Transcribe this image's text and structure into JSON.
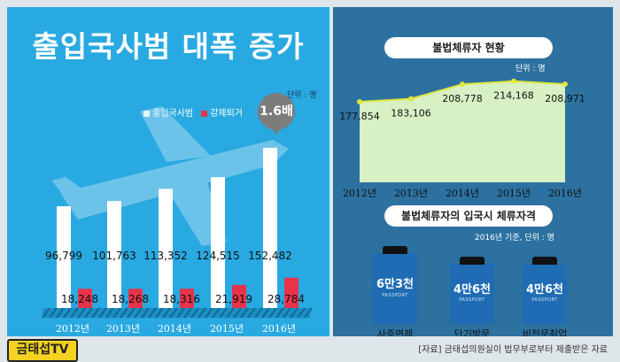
{
  "left_panel": {
    "title": "출입국사범 대폭 증가",
    "unit": "단위 : 명",
    "legend": [
      "출입국사범",
      "강제퇴거"
    ],
    "badge": "1.6배"
  },
  "right_panel": {
    "top_title": "불법체류자 현황",
    "top_unit": "단위 : 명",
    "bottom_title": "불법체류자의 입국시 체류자격",
    "bottom_unit": "2016년 기준, 단위 : 명",
    "passports": [
      {
        "value": "6만3천",
        "label": "사증면제",
        "sub": "PASSPORT"
      },
      {
        "value": "4만6천",
        "label": "단기방문",
        "sub": "PASSPORT"
      },
      {
        "value": "4만6천",
        "label": "비전문취업",
        "sub": "PASSPORT"
      }
    ]
  },
  "footer": {
    "logo": "금태섭TV",
    "source": "[자료] 금태섭의원실이 법무부로부터 제출받은 자료"
  },
  "colors": {
    "left_bg": "#29a9e1",
    "right_bg": "#2c71a0",
    "bar_white": "#ffffff",
    "bar_red": "#e8334a",
    "area_fill": "#d7f0c4",
    "line": "#e0e63a"
  },
  "chart_data": [
    {
      "type": "bar",
      "categories": [
        "2012년",
        "2013년",
        "2014년",
        "2015년",
        "2016년"
      ],
      "series": [
        {
          "name": "출입국사범",
          "values": [
            96799,
            101763,
            113352,
            124515,
            152482
          ],
          "labels": [
            "96,799",
            "101,763",
            "113,352",
            "124,515",
            "152,482"
          ]
        },
        {
          "name": "강제퇴거",
          "values": [
            18248,
            18268,
            18316,
            21919,
            28784
          ],
          "labels": [
            "18,248",
            "18,268",
            "18,316",
            "21,919",
            "28,784"
          ]
        }
      ],
      "title": "출입국사범 대폭 증가",
      "ylim": [
        0,
        160000
      ]
    },
    {
      "type": "area",
      "categories": [
        "2012년",
        "2013년",
        "2014년",
        "2015년",
        "2016년"
      ],
      "values": [
        177854,
        183106,
        208778,
        214168,
        208971
      ],
      "labels": [
        "177,854",
        "183,106",
        "208,778",
        "214,168",
        "208,971"
      ],
      "title": "불법체류자 현황",
      "ylim": [
        0,
        220000
      ]
    }
  ]
}
